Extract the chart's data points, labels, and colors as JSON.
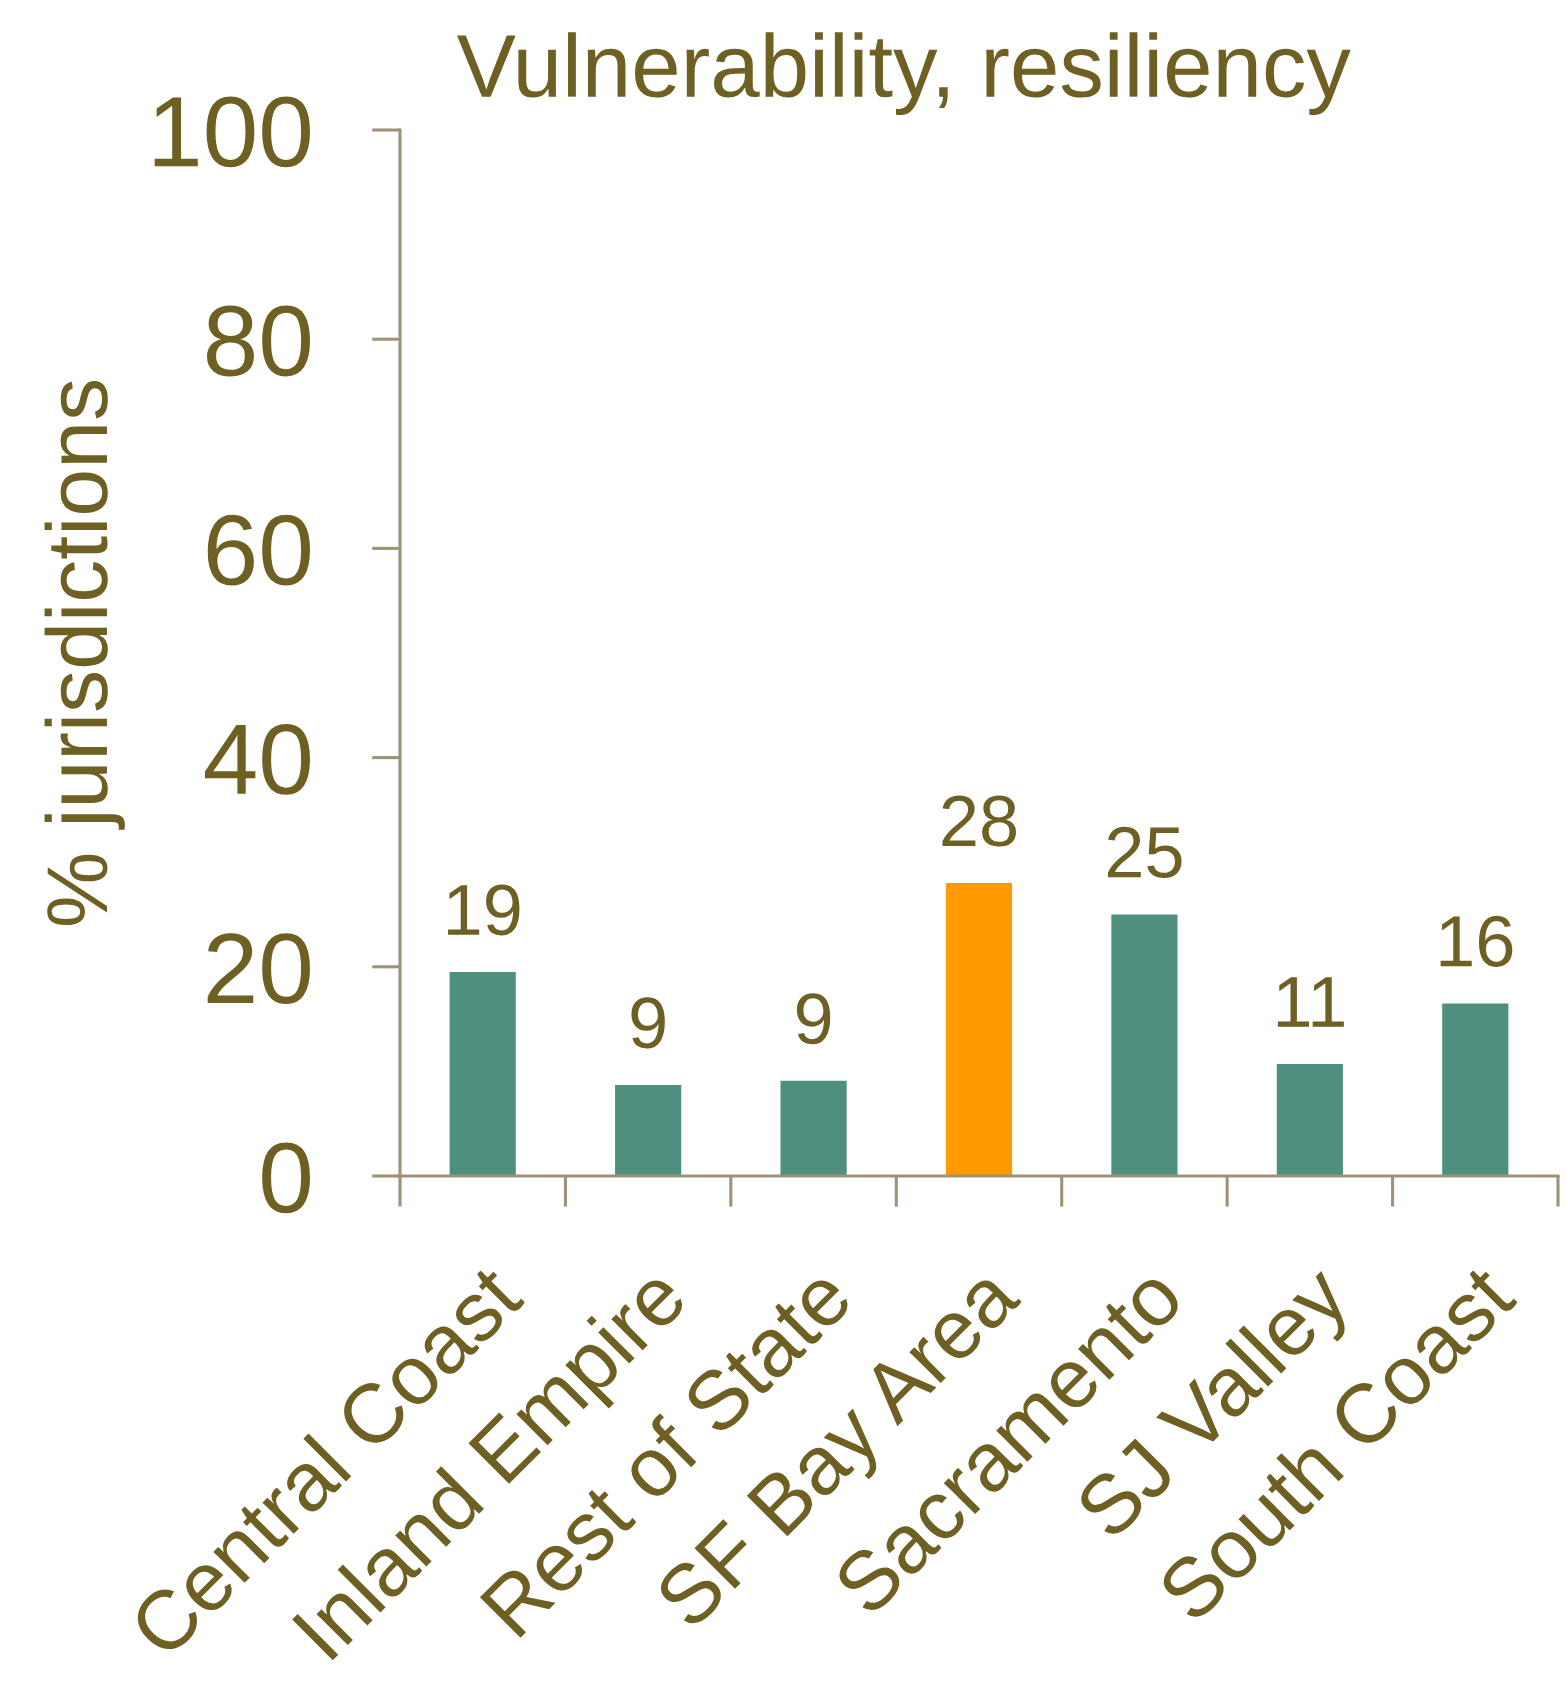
{
  "chart_data": {
    "type": "bar",
    "title": "Vulnerability, resiliency",
    "ylabel": "% jurisdictions",
    "categories": [
      "Central Coast",
      "Inland Empire",
      "Rest of State",
      "SF Bay Area",
      "Sacramento",
      "SJ Valley",
      "South Coast"
    ],
    "values": [
      19.5,
      8.7,
      9.1,
      28.0,
      25.0,
      10.7,
      16.5
    ],
    "colors": [
      "#4f8f7f",
      "#4f8f7f",
      "#4f8f7f",
      "#ff9900",
      "#4f8f7f",
      "#4f8f7f",
      "#4f8f7f"
    ],
    "value_labels": [
      "19",
      "9",
      "9",
      "28",
      "25",
      "11",
      "16"
    ],
    "ylim": [
      0,
      100
    ],
    "yticks": [
      0,
      20,
      40,
      60,
      80,
      100
    ]
  }
}
